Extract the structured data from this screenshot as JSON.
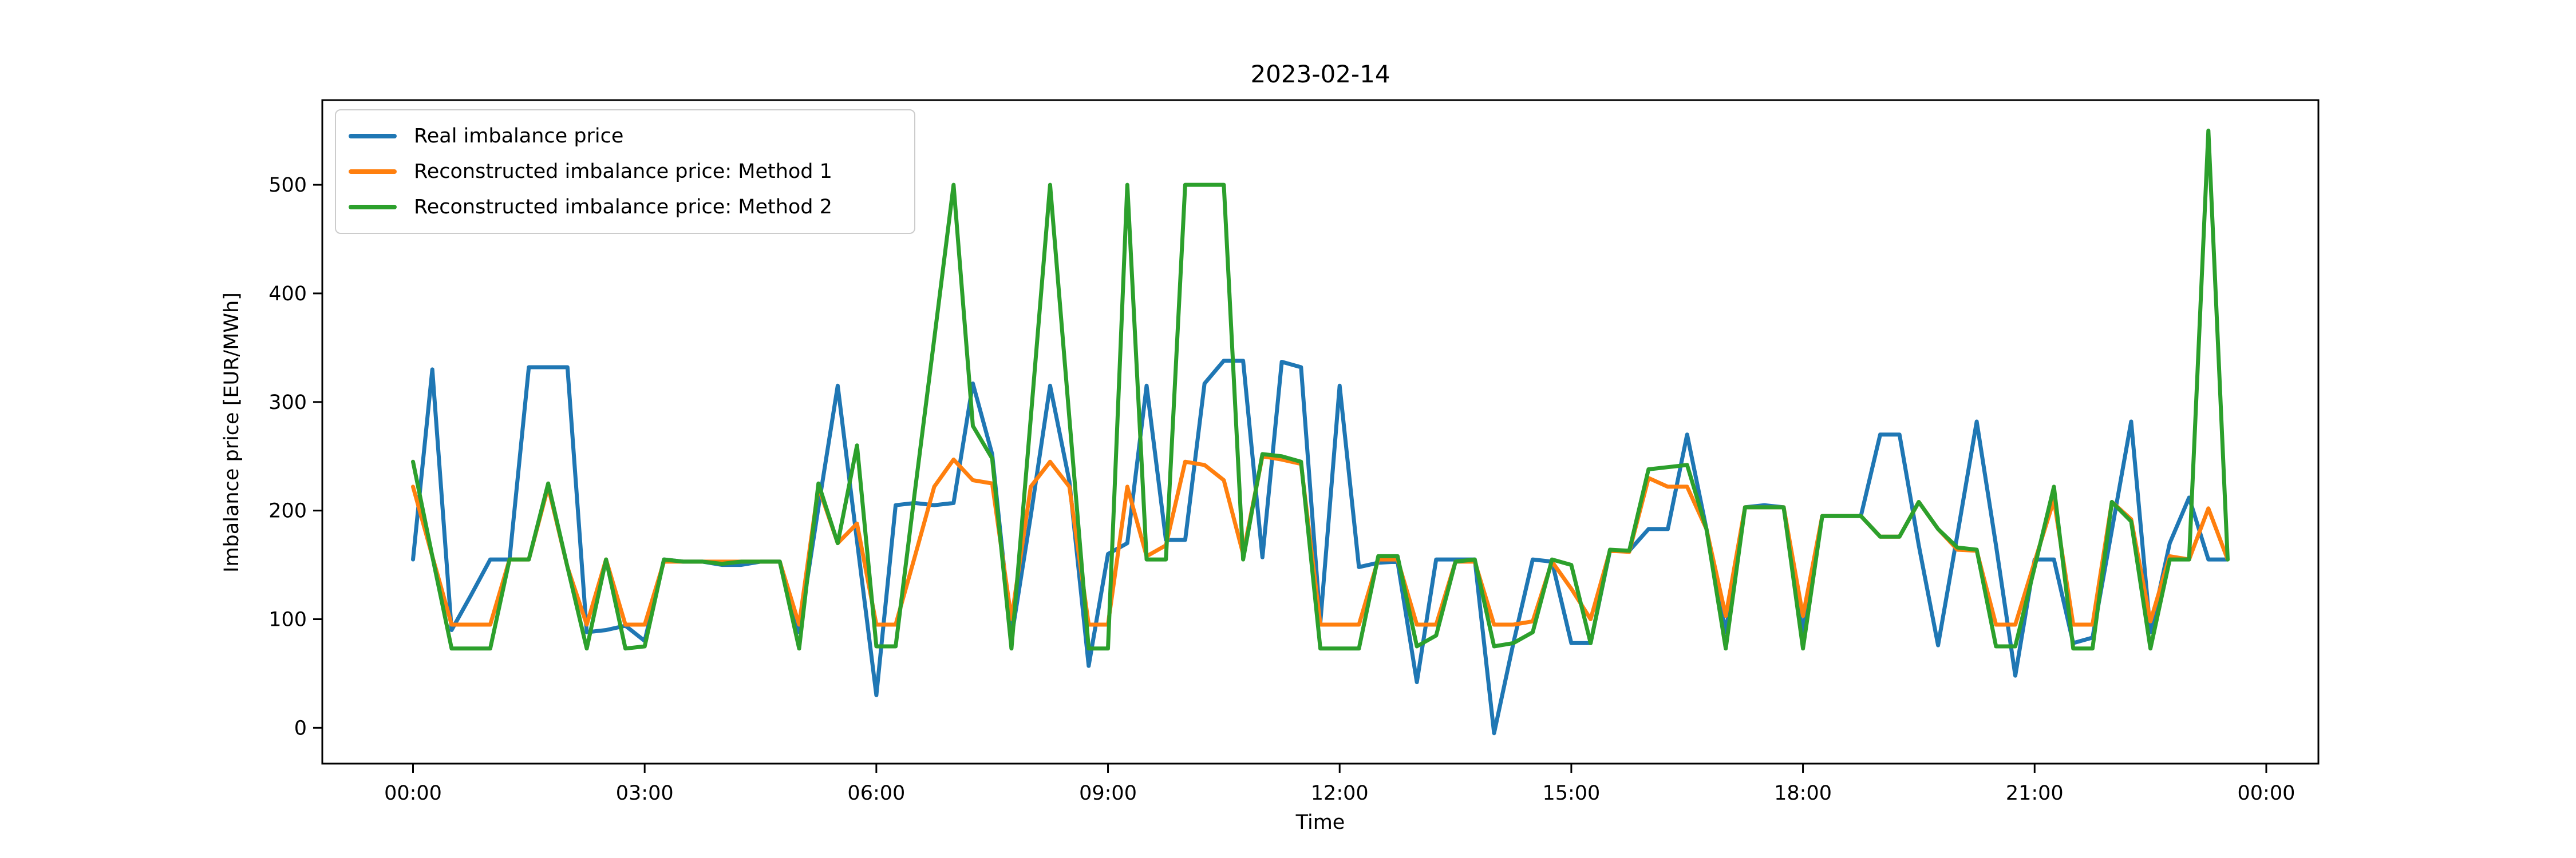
{
  "chart_data": {
    "type": "line",
    "title": "2023-02-14",
    "xlabel": "Time",
    "ylabel": "Imbalance price [EUR/MWh]",
    "grid": false,
    "legend_position": "upper left",
    "ylim": [
      -33,
      578
    ],
    "yticks": [
      0,
      100,
      200,
      300,
      400,
      500
    ],
    "x_tick_labels": [
      "00:00",
      "03:00",
      "06:00",
      "09:00",
      "12:00",
      "15:00",
      "18:00",
      "21:00",
      "00:00"
    ],
    "x_tick_positions": [
      0,
      12,
      24,
      36,
      48,
      60,
      72,
      84,
      96
    ],
    "x_interval_minutes": 15,
    "x_times": [
      "00:00",
      "00:15",
      "00:30",
      "00:45",
      "01:00",
      "01:15",
      "01:30",
      "01:45",
      "02:00",
      "02:15",
      "02:30",
      "02:45",
      "03:00",
      "03:15",
      "03:30",
      "03:45",
      "04:00",
      "04:15",
      "04:30",
      "04:45",
      "05:00",
      "05:15",
      "05:30",
      "05:45",
      "06:00",
      "06:15",
      "06:30",
      "06:45",
      "07:00",
      "07:15",
      "07:30",
      "07:45",
      "08:00",
      "08:15",
      "08:30",
      "08:45",
      "09:00",
      "09:15",
      "09:30",
      "09:45",
      "10:00",
      "10:15",
      "10:30",
      "10:45",
      "11:00",
      "11:15",
      "11:30",
      "11:45",
      "12:00",
      "12:15",
      "12:30",
      "12:45",
      "13:00",
      "13:15",
      "13:30",
      "13:45",
      "14:00",
      "14:15",
      "14:30",
      "14:45",
      "15:00",
      "15:15",
      "15:30",
      "15:45",
      "16:00",
      "16:15",
      "16:30",
      "16:45",
      "17:00",
      "17:15",
      "17:30",
      "17:45",
      "18:00",
      "18:15",
      "18:30",
      "18:45",
      "19:00",
      "19:15",
      "19:30",
      "19:45",
      "20:00",
      "20:15",
      "20:30",
      "20:45",
      "21:00",
      "21:15",
      "21:30",
      "21:45",
      "22:00",
      "22:15",
      "22:30",
      "22:45",
      "23:00",
      "23:15",
      "23:30"
    ],
    "series": [
      {
        "name": "Real imbalance price",
        "color": "#1f77b4",
        "values": [
          155,
          330,
          90,
          122,
          155,
          155,
          332,
          332,
          332,
          88,
          90,
          94,
          80,
          155,
          153,
          153,
          150,
          150,
          153,
          153,
          88,
          203,
          315,
          172,
          30,
          205,
          207,
          205,
          207,
          317,
          252,
          83,
          195,
          315,
          227,
          57,
          160,
          170,
          315,
          173,
          173,
          317,
          338,
          338,
          157,
          337,
          332,
          97,
          315,
          148,
          152,
          153,
          42,
          155,
          155,
          155,
          -5,
          78,
          155,
          153,
          78,
          78,
          163,
          163,
          183,
          183,
          270,
          183,
          88,
          203,
          205,
          203,
          88,
          195,
          195,
          195,
          270,
          270,
          168,
          76,
          178,
          282,
          168,
          48,
          155,
          155,
          78,
          83,
          182,
          282,
          88,
          170,
          212,
          155,
          155
        ]
      },
      {
        "name": "Reconstructed imbalance price: Method 1",
        "color": "#ff7f0e",
        "values": [
          222,
          158,
          95,
          95,
          95,
          155,
          155,
          222,
          148,
          95,
          155,
          95,
          95,
          153,
          153,
          153,
          153,
          153,
          153,
          153,
          95,
          222,
          170,
          188,
          95,
          95,
          158,
          222,
          247,
          228,
          225,
          100,
          222,
          245,
          222,
          95,
          95,
          222,
          158,
          168,
          245,
          242,
          228,
          160,
          250,
          247,
          243,
          95,
          95,
          95,
          155,
          155,
          95,
          95,
          153,
          153,
          95,
          95,
          98,
          153,
          128,
          100,
          163,
          162,
          230,
          222,
          222,
          183,
          103,
          203,
          203,
          203,
          103,
          195,
          195,
          195,
          176,
          176,
          208,
          183,
          164,
          163,
          95,
          95,
          153,
          210,
          95,
          95,
          208,
          192,
          98,
          158,
          155,
          202,
          155
        ]
      },
      {
        "name": "Reconstructed imbalance price: Method 2",
        "color": "#2ca02c",
        "values": [
          245,
          158,
          73,
          73,
          73,
          155,
          155,
          225,
          148,
          73,
          155,
          73,
          75,
          155,
          153,
          153,
          151,
          153,
          153,
          153,
          73,
          225,
          170,
          260,
          75,
          75,
          218,
          358,
          500,
          278,
          248,
          73,
          285,
          500,
          285,
          73,
          73,
          500,
          155,
          155,
          500,
          500,
          500,
          155,
          252,
          250,
          245,
          73,
          73,
          73,
          158,
          158,
          75,
          85,
          153,
          155,
          75,
          78,
          88,
          155,
          150,
          78,
          164,
          163,
          238,
          240,
          242,
          183,
          73,
          203,
          203,
          203,
          73,
          195,
          195,
          195,
          176,
          176,
          208,
          183,
          166,
          164,
          75,
          75,
          148,
          222,
          73,
          73,
          208,
          190,
          73,
          155,
          155,
          550,
          155
        ]
      }
    ]
  }
}
